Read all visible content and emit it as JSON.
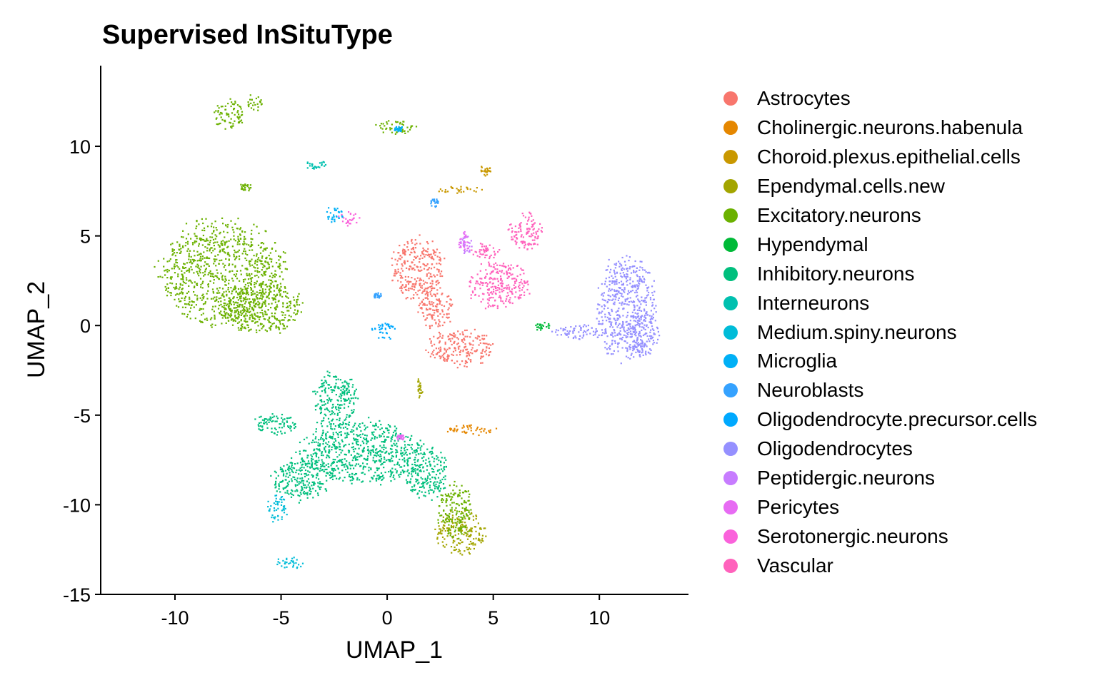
{
  "chart_data": {
    "type": "scatter",
    "title": "Supervised InSituType",
    "xlabel": "UMAP_1",
    "ylabel": "UMAP_2",
    "xlim": [
      -13.5,
      14.2
    ],
    "ylim": [
      -15,
      14.5
    ],
    "x_ticks": [
      -10,
      -5,
      0,
      5,
      10
    ],
    "y_ticks": [
      10,
      5,
      0,
      -5,
      -10,
      -15
    ],
    "x_tick_labels": [
      "-10",
      "-5",
      "0",
      "5",
      "10"
    ],
    "y_tick_labels": [
      "10",
      "5",
      "0",
      "-5",
      "-10",
      "-15"
    ],
    "legend_position": "right",
    "grid": false,
    "series": [
      {
        "name": "Astrocytes",
        "color": "#F8766D",
        "clusters": [
          {
            "cx": 1.4,
            "cy": 3.2,
            "rx": 1.2,
            "ry": 1.7
          },
          {
            "cx": 3.4,
            "cy": -1.2,
            "rx": 1.5,
            "ry": 1.0
          },
          {
            "cx": 2.3,
            "cy": 1.0,
            "rx": 0.8,
            "ry": 1.1
          }
        ]
      },
      {
        "name": "Cholinergic.neurons.habenula",
        "color": "#E58700",
        "clusters": [
          {
            "cx": 3.9,
            "cy": -5.8,
            "rx": 1.1,
            "ry": 0.3
          }
        ]
      },
      {
        "name": "Choroid.plexus.epithelial.cells",
        "color": "#C99800",
        "clusters": [
          {
            "cx": 4.6,
            "cy": 8.7,
            "rx": 0.35,
            "ry": 0.3
          },
          {
            "cx": 3.4,
            "cy": 7.6,
            "rx": 1.0,
            "ry": 0.2
          }
        ]
      },
      {
        "name": "Ependymal.cells.new",
        "color": "#A3A500",
        "clusters": [
          {
            "cx": 3.4,
            "cy": -11.5,
            "rx": 1.1,
            "ry": 1.2
          },
          {
            "cx": 1.5,
            "cy": -3.5,
            "rx": 0.15,
            "ry": 0.6
          }
        ]
      },
      {
        "name": "Excitatory.neurons",
        "color": "#6BB100",
        "clusters": [
          {
            "cx": -7.8,
            "cy": 3.0,
            "rx": 2.9,
            "ry": 2.8
          },
          {
            "cx": -6.0,
            "cy": 1.0,
            "rx": 1.9,
            "ry": 1.4
          },
          {
            "cx": -7.5,
            "cy": 11.8,
            "rx": 0.7,
            "ry": 0.8
          },
          {
            "cx": -6.3,
            "cy": 12.5,
            "rx": 0.35,
            "ry": 0.5
          },
          {
            "cx": 0.3,
            "cy": 11.1,
            "rx": 1.0,
            "ry": 0.35
          },
          {
            "cx": -6.7,
            "cy": 7.8,
            "rx": 0.35,
            "ry": 0.25
          },
          {
            "cx": 3.2,
            "cy": -10.3,
            "rx": 0.8,
            "ry": 1.5
          }
        ]
      },
      {
        "name": "Hypendymal",
        "color": "#00BA38",
        "clusters": [
          {
            "cx": 7.3,
            "cy": 0.0,
            "rx": 0.4,
            "ry": 0.3
          }
        ]
      },
      {
        "name": "Inhibitory.neurons",
        "color": "#00BF7D",
        "clusters": [
          {
            "cx": -1.2,
            "cy": -7.0,
            "rx": 2.8,
            "ry": 1.7
          },
          {
            "cx": -2.5,
            "cy": -4.2,
            "rx": 1.0,
            "ry": 1.6
          },
          {
            "cx": 1.8,
            "cy": -8.2,
            "rx": 1.0,
            "ry": 1.4
          },
          {
            "cx": -4.0,
            "cy": -8.5,
            "rx": 1.4,
            "ry": 1.2
          },
          {
            "cx": -5.3,
            "cy": -5.5,
            "rx": 1.0,
            "ry": 0.6
          }
        ]
      },
      {
        "name": "Interneurons",
        "color": "#00C0AF",
        "clusters": [
          {
            "cx": -3.4,
            "cy": 9.0,
            "rx": 0.55,
            "ry": 0.2
          }
        ]
      },
      {
        "name": "Medium.spiny.neurons",
        "color": "#00BCD8",
        "clusters": [
          {
            "cx": -5.2,
            "cy": -10.2,
            "rx": 0.5,
            "ry": 0.7
          },
          {
            "cx": -4.6,
            "cy": -13.2,
            "rx": 0.65,
            "ry": 0.35
          }
        ]
      },
      {
        "name": "Microglia",
        "color": "#00B0F6",
        "clusters": [
          {
            "cx": -2.5,
            "cy": 6.2,
            "rx": 0.45,
            "ry": 0.5
          },
          {
            "cx": 0.5,
            "cy": 11.0,
            "rx": 0.2,
            "ry": 0.15
          }
        ]
      },
      {
        "name": "Neuroblasts",
        "color": "#35A2FF",
        "clusters": [
          {
            "cx": 2.2,
            "cy": 6.9,
            "rx": 0.2,
            "ry": 0.25
          },
          {
            "cx": -0.5,
            "cy": 1.7,
            "rx": 0.2,
            "ry": 0.15
          }
        ]
      },
      {
        "name": "Oligodendrocyte.precursor.cells",
        "color": "#00A9FF",
        "clusters": [
          {
            "cx": -0.2,
            "cy": -0.3,
            "rx": 0.55,
            "ry": 0.5
          }
        ]
      },
      {
        "name": "Oligodendrocytes",
        "color": "#9590FF",
        "clusters": [
          {
            "cx": 11.2,
            "cy": 1.0,
            "rx": 1.4,
            "ry": 2.8
          },
          {
            "cx": 12.0,
            "cy": -0.5,
            "rx": 0.7,
            "ry": 1.2
          },
          {
            "cx": 9.0,
            "cy": -0.3,
            "rx": 1.2,
            "ry": 0.45
          }
        ]
      },
      {
        "name": "Peptidergic.neurons",
        "color": "#C77CFF",
        "clusters": [
          {
            "cx": 3.7,
            "cy": 4.5,
            "rx": 0.3,
            "ry": 0.5
          }
        ]
      },
      {
        "name": "Pericytes",
        "color": "#E76BF3",
        "clusters": [
          {
            "cx": 3.6,
            "cy": 4.7,
            "rx": 0.25,
            "ry": 0.6
          },
          {
            "cx": 0.6,
            "cy": -6.2,
            "rx": 0.2,
            "ry": 0.15
          }
        ]
      },
      {
        "name": "Serotonergic.neurons",
        "color": "#FA62DB",
        "clusters": [
          {
            "cx": -1.8,
            "cy": 6.0,
            "rx": 0.5,
            "ry": 0.35
          }
        ]
      },
      {
        "name": "Vascular",
        "color": "#FF62BC",
        "clusters": [
          {
            "cx": 5.2,
            "cy": 2.3,
            "rx": 1.4,
            "ry": 1.3
          },
          {
            "cx": 6.5,
            "cy": 5.3,
            "rx": 0.8,
            "ry": 1.0
          },
          {
            "cx": 4.6,
            "cy": 4.2,
            "rx": 0.6,
            "ry": 0.5
          }
        ]
      }
    ]
  }
}
